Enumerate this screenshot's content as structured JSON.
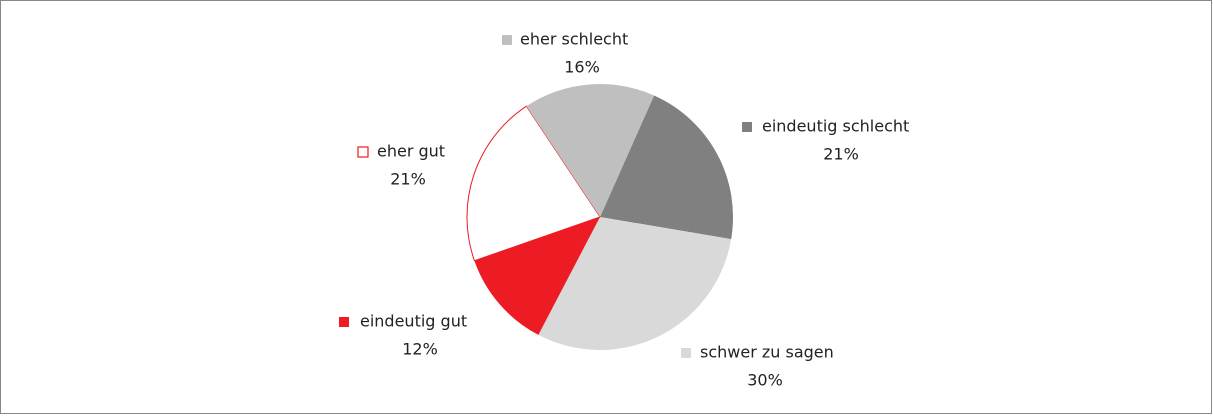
{
  "chart_data": {
    "type": "pie",
    "categories": [
      "eindeutig schlecht",
      "schwer zu sagen",
      "eindeutig gut",
      "eher gut",
      "eher schlecht"
    ],
    "values": [
      21,
      30,
      12,
      21,
      16
    ],
    "value_labels": [
      "21%",
      "30%",
      "12%",
      "21%",
      "16%"
    ],
    "colors": [
      "#808080",
      "#d9d9d9",
      "#ed1c24",
      "#ffffff",
      "#bfbfbf"
    ],
    "edge_colors": [
      null,
      null,
      null,
      "#ed1c24",
      null
    ],
    "start_angle": 24
  }
}
